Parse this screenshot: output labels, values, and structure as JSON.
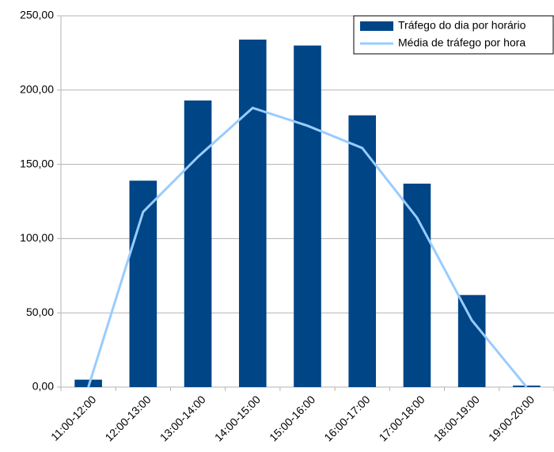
{
  "chart_data": {
    "type": "bar",
    "categories": [
      "11:00-12:00",
      "12:00-13:00",
      "13:00-14:00",
      "14:00-15:00",
      "15:00-16:00",
      "16:00-17:00",
      "17:00-18:00",
      "18:00-19:00",
      "19:00-20:00"
    ],
    "series": [
      {
        "name": "Tráfego do dia por horário",
        "type": "bar",
        "color": "#004586",
        "values": [
          5,
          139,
          193,
          234,
          230,
          183,
          137,
          62,
          1
        ]
      },
      {
        "name": "Média de tráfego por hora",
        "type": "line",
        "color": "#99ccff",
        "values": [
          0,
          118,
          155,
          188,
          176,
          161,
          114,
          45,
          0
        ]
      }
    ],
    "ylim": [
      0,
      250
    ],
    "yticks": [
      {
        "value": 0,
        "label": "0,00"
      },
      {
        "value": 50,
        "label": "50,00"
      },
      {
        "value": 100,
        "label": "100,00"
      },
      {
        "value": 150,
        "label": "150,00"
      },
      {
        "value": 200,
        "label": "200,00"
      },
      {
        "value": 250,
        "label": "250,00"
      }
    ],
    "grid": true,
    "legend": "top-right"
  }
}
